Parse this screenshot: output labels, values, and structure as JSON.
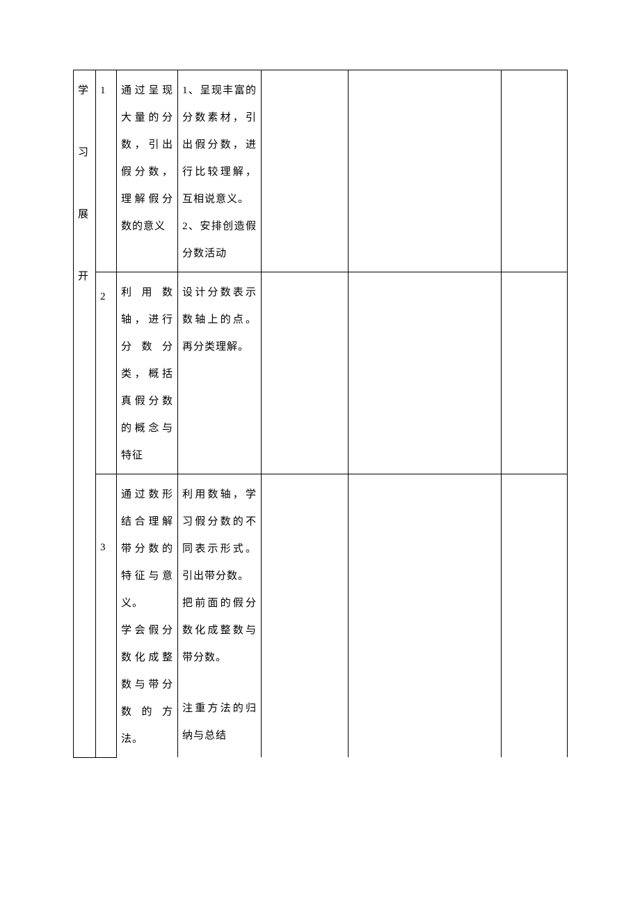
{
  "section_label": {
    "c1": "学",
    "c2": "习",
    "c3": "展",
    "c4": "开"
  },
  "rows": [
    {
      "num": "1",
      "col3": "通过呈现大量的分数，引出假分数，理解假分数的意义",
      "col4_p1": "1、呈现丰富的分数素材，引出假分数，进行比较理解，互相说意义。",
      "col4_p2": "2、安排创造假分数活动"
    },
    {
      "num": "2",
      "col3": "利用数轴，进行分数分类，概括真假分数的概念与特征",
      "col4_p1": "设计分数表示数轴上的点。再分类理解。"
    },
    {
      "num": "3",
      "col3_p1": "通过数形结合理解带分数的特征与意义。",
      "col3_p2": "学会假分数化成整数与带分数的方法。",
      "col4_p1": "利用数轴，学习假分数的不同表示形式。引出带分数。",
      "col4_p2": "把前面的假分数化成整数与带分数。",
      "col4_p3": "注重方法的归纳与总结"
    }
  ]
}
